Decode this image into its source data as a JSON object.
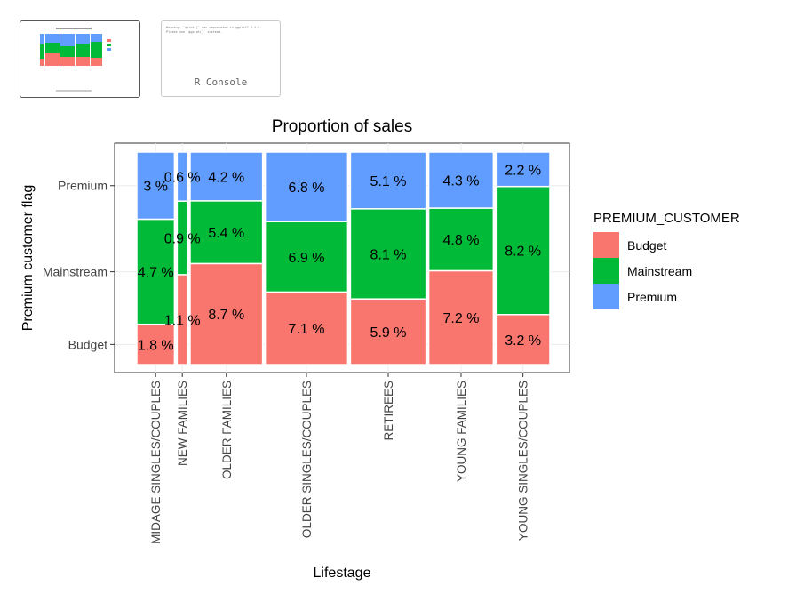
{
  "thumbnails": {
    "console_label": "R Console",
    "console_text": "Warning: `qplot()` was deprecated in ggplot2 3.4.0.\nPlease use `ggplot()` instead."
  },
  "chart_data": {
    "type": "mosaic",
    "title": "Proportion of sales",
    "xlabel": "Lifestage",
    "ylabel": "Premium customer flag",
    "legend_title": "PREMIUM_CUSTOMER",
    "legend_position": "right",
    "grid": true,
    "categories": [
      "MIDAGE SINGLES/COUPLES",
      "NEW FAMILIES",
      "OLDER FAMILIES",
      "OLDER SINGLES/COUPLES",
      "RETIREES",
      "YOUNG FAMILIES",
      "YOUNG SINGLES/COUPLES"
    ],
    "y_ticks": [
      "Budget",
      "Mainstream",
      "Premium"
    ],
    "series": [
      {
        "name": "Budget",
        "color": "#F8766D",
        "values": [
          1.8,
          1.1,
          8.7,
          7.1,
          5.9,
          7.2,
          3.2
        ],
        "labels": [
          "1.8 %",
          "1.1 %",
          "8.7 %",
          "7.1 %",
          "5.9 %",
          "7.2 %",
          "3.2 %"
        ]
      },
      {
        "name": "Mainstream",
        "color": "#00BA38",
        "values": [
          4.7,
          0.9,
          5.4,
          6.9,
          8.1,
          4.8,
          8.2
        ],
        "labels": [
          "4.7 %",
          "0.9 %",
          "5.4 %",
          "6.9 %",
          "8.1 %",
          "4.8 %",
          "8.2 %"
        ]
      },
      {
        "name": "Premium",
        "color": "#619CFF",
        "values": [
          3,
          0.6,
          4.2,
          6.8,
          5.1,
          4.3,
          2.2
        ],
        "labels": [
          "3 %",
          "0.6 %",
          "4.2 %",
          "6.8 %",
          "5.1 %",
          "4.3 %",
          "2.2 %"
        ]
      }
    ]
  }
}
